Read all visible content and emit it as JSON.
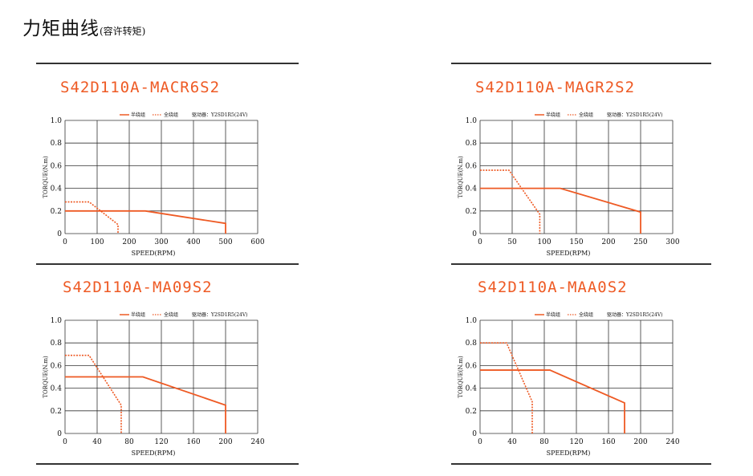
{
  "page": {
    "title": "力矩曲线",
    "subtitle": "(容许转矩)"
  },
  "colors": {
    "curve": "#ee5a24",
    "grid": "#333333",
    "rule": "#333333"
  },
  "chart_data": [
    {
      "type": "line",
      "title": "S42D110A-MACR6S2",
      "xlabel": "SPEED(RPM)",
      "ylabel": "TORQUE(N.m)",
      "xlim": [
        0,
        600
      ],
      "ylim": [
        0,
        1.0
      ],
      "xticks": [
        "0",
        "100",
        "200",
        "300",
        "400",
        "500",
        "600"
      ],
      "yticks": [
        "0",
        "0.2",
        "0.4",
        "0.6",
        "0.8",
        "1.0"
      ],
      "grid": true,
      "legend": {
        "half": "半绕组",
        "full": "全绕组",
        "driver": "驱动器：Y2SD1R5(24V)"
      },
      "series": [
        {
          "name": "半绕组",
          "style": "solid",
          "x": [
            0,
            250,
            500,
            500
          ],
          "y": [
            0.2,
            0.2,
            0.09,
            0
          ]
        },
        {
          "name": "全绕组",
          "style": "dotted",
          "x": [
            0,
            75,
            165,
            165
          ],
          "y": [
            0.28,
            0.28,
            0.08,
            0
          ]
        }
      ]
    },
    {
      "type": "line",
      "title": "S42D110A-MAGR2S2",
      "xlabel": "SPEED(RPM)",
      "ylabel": "TORQUE(N.m)",
      "xlim": [
        0,
        300
      ],
      "ylim": [
        0,
        1.0
      ],
      "xticks": [
        "0",
        "50",
        "100",
        "150",
        "200",
        "250",
        "300"
      ],
      "yticks": [
        "0",
        "0.2",
        "0.4",
        "0.6",
        "0.8",
        "1.0"
      ],
      "grid": true,
      "legend": {
        "half": "半绕组",
        "full": "全绕组",
        "driver": "驱动器：Y2SD1R5(24V)"
      },
      "series": [
        {
          "name": "半绕组",
          "style": "solid",
          "x": [
            0,
            125,
            250,
            250
          ],
          "y": [
            0.4,
            0.4,
            0.19,
            0
          ]
        },
        {
          "name": "全绕组",
          "style": "dotted",
          "x": [
            0,
            45,
            93,
            93
          ],
          "y": [
            0.56,
            0.56,
            0.17,
            0
          ]
        }
      ]
    },
    {
      "type": "line",
      "title": "S42D110A-MA09S2",
      "xlabel": "SPEED(RPM)",
      "ylabel": "TORQUE(N.m)",
      "xlim": [
        0,
        240
      ],
      "ylim": [
        0,
        1.0
      ],
      "xticks": [
        "0",
        "40",
        "80",
        "120",
        "160",
        "200",
        "240"
      ],
      "yticks": [
        "0",
        "0.2",
        "0.4",
        "0.6",
        "0.8",
        "1.0"
      ],
      "grid": true,
      "legend": {
        "half": "半绕组",
        "full": "全绕组",
        "driver": "驱动器：Y2SD1R5(24V)"
      },
      "series": [
        {
          "name": "半绕组",
          "style": "solid",
          "x": [
            0,
            97,
            200,
            200
          ],
          "y": [
            0.5,
            0.5,
            0.25,
            0
          ]
        },
        {
          "name": "全绕组",
          "style": "dotted",
          "x": [
            0,
            30,
            70,
            70
          ],
          "y": [
            0.69,
            0.69,
            0.25,
            0
          ]
        }
      ]
    },
    {
      "type": "line",
      "title": "S42D110A-MAA0S2",
      "xlabel": "SPEED(RPM)",
      "ylabel": "TORQUE(N.m)",
      "xlim": [
        0,
        240
      ],
      "ylim": [
        0,
        1.0
      ],
      "xticks": [
        "0",
        "40",
        "80",
        "120",
        "160",
        "200",
        "240"
      ],
      "yticks": [
        "0",
        "0.2",
        "0.4",
        "0.6",
        "0.8",
        "1.0"
      ],
      "grid": true,
      "legend": {
        "half": "半绕组",
        "full": "全绕组",
        "driver": "驱动器：Y2SD1R5(24V)"
      },
      "series": [
        {
          "name": "半绕组",
          "style": "solid",
          "x": [
            0,
            87,
            180,
            180
          ],
          "y": [
            0.56,
            0.56,
            0.27,
            0
          ]
        },
        {
          "name": "全绕组",
          "style": "dotted",
          "x": [
            0,
            33,
            65,
            65
          ],
          "y": [
            0.8,
            0.8,
            0.28,
            0
          ]
        }
      ]
    }
  ]
}
